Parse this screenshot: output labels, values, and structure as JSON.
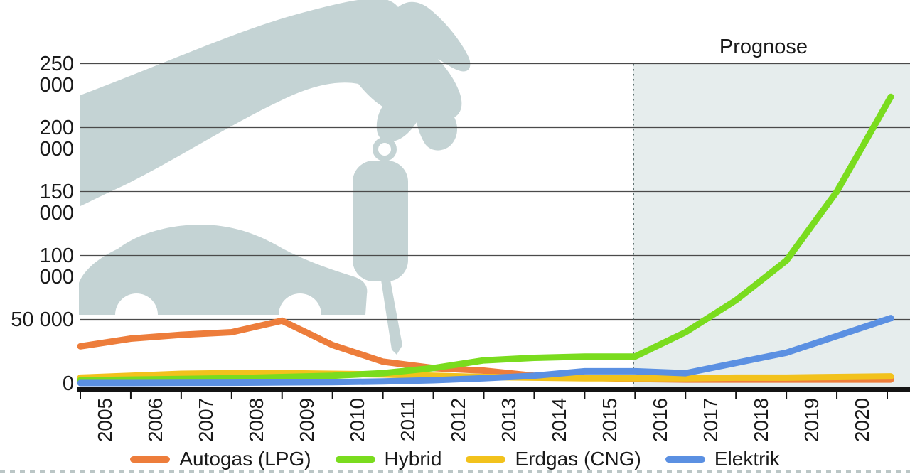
{
  "chart_data": {
    "type": "line",
    "description": "Line chart of German alternative-drive vehicle registrations 2005-2020 with forecast region",
    "x_categories": [
      "2005",
      "2006",
      "2007",
      "2008",
      "2009",
      "2010",
      "2011",
      "2012",
      "2013",
      "2014",
      "2015",
      "2016",
      "2017",
      "2018",
      "2019",
      "2020"
    ],
    "y_axis": {
      "tick_labels": [
        "250 000",
        "200 000",
        "150 000",
        "100 000",
        "50 000",
        "0"
      ],
      "tick_values": [
        250000,
        200000,
        150000,
        100000,
        50000,
        0
      ],
      "ylim": [
        0,
        250000
      ],
      "grid": true
    },
    "annotation": {
      "label": "Prognose",
      "forecast_start_year": "2016"
    },
    "series": [
      {
        "name": "Autogas (LPG)",
        "slug": "autogas-lpg",
        "color": "#ED7D3B",
        "values": [
          29000,
          35000,
          38000,
          40000,
          49000,
          30000,
          17000,
          12000,
          10000,
          6000,
          4500,
          3500,
          3000,
          3000,
          3000,
          3000
        ],
        "edge_value": 3000
      },
      {
        "name": "Erdgas (CNG)",
        "slug": "erdgas-cng",
        "color": "#F2C21C",
        "values": [
          4500,
          6000,
          7500,
          8000,
          8000,
          7500,
          7000,
          6000,
          5000,
          4500,
          4000,
          4000,
          4000,
          4500,
          4500,
          5000
        ],
        "edge_value": 5500
      },
      {
        "name": "Hybrid",
        "slug": "hybrid",
        "color": "#7ADC1E",
        "values": [
          2500,
          3000,
          3500,
          4000,
          5000,
          6000,
          8000,
          12000,
          18000,
          20000,
          21000,
          21000,
          40000,
          65000,
          96000,
          150000
        ],
        "edge_value": 224000
      },
      {
        "name": "Elektrik",
        "slug": "elektrik",
        "color": "#5B90E2",
        "values": [
          300,
          300,
          400,
          500,
          800,
          1000,
          1500,
          2500,
          4000,
          6000,
          9500,
          9500,
          8000,
          16000,
          24000,
          37000
        ],
        "edge_value": 51000
      }
    ],
    "legend": [
      {
        "label": "Autogas (LPG)",
        "color": "#ED7D3B"
      },
      {
        "label": "Hybrid",
        "color": "#7ADC1E"
      },
      {
        "label": "Erdgas (CNG)",
        "color": "#F2C21C"
      },
      {
        "label": "Elektrik",
        "color": "#5B90E2"
      }
    ],
    "legend_position": "bottom"
  },
  "decor": {
    "background": "#FFFFFF",
    "silhouette_color": "#C4D3D4",
    "forecast_shade_color": "#E6EDED",
    "gridline_color": "#4A4A4A",
    "axis_color": "#141414",
    "dotted_line_color": "#5E7070",
    "text_color": "#1A1A1A"
  }
}
